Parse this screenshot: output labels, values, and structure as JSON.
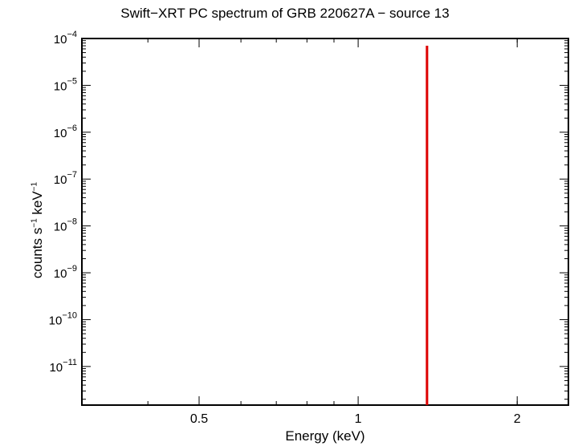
{
  "chart_data": {
    "type": "line",
    "title": "Swift−XRT PC spectrum of GRB 220627A − source 13",
    "xlabel": "Energy (keV)",
    "ylabel": {
      "text": "counts s",
      "sup1": "−1",
      "mid": " keV",
      "sup2": "−1"
    },
    "x_scale": "log",
    "y_scale": "log",
    "xlim": [
      0.3,
      2.5
    ],
    "ylim": [
      1.5e-12,
      0.0001
    ],
    "x_ticks": [
      {
        "value": 0.5,
        "label": "0.5"
      },
      {
        "value": 1,
        "label": "1"
      },
      {
        "value": 2,
        "label": "2"
      }
    ],
    "y_ticks": [
      {
        "value": 0.0001,
        "exp": "−4"
      },
      {
        "value": 1e-05,
        "exp": "−5"
      },
      {
        "value": 1e-06,
        "exp": "−6"
      },
      {
        "value": 1e-07,
        "exp": "−7"
      },
      {
        "value": 1e-08,
        "exp": "−8"
      },
      {
        "value": 1e-09,
        "exp": "−9"
      },
      {
        "value": 1e-10,
        "exp": "−10"
      },
      {
        "value": 1e-11,
        "exp": "−11"
      }
    ],
    "series": [
      {
        "color": "#dd0000",
        "points": [
          {
            "x": 1.35,
            "y": 7e-05
          },
          {
            "x": 1.35,
            "y": 1.5e-12
          }
        ]
      }
    ],
    "grid": false
  }
}
